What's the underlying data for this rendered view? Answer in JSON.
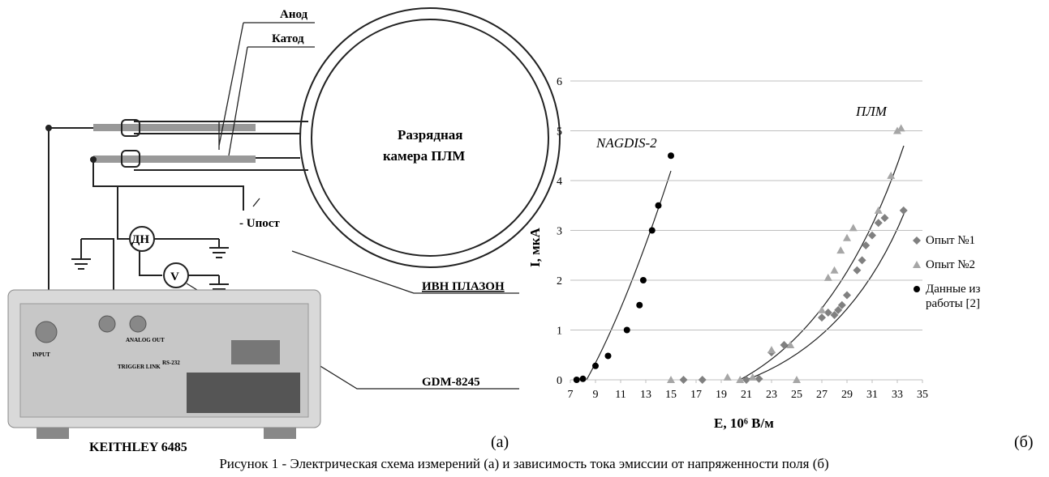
{
  "diagram": {
    "anode": "Анод",
    "cathode": "Катод",
    "chamber": [
      "Разрядная",
      "камера ПЛМ"
    ],
    "divider": "ДН",
    "voltmeter": "V",
    "supply": "- Uпост",
    "source": "ИВН ПЛАЗОН",
    "meter": "GDM-8245",
    "device": "KEITHLEY 6485",
    "panel": [
      "INPUT",
      "ANALOG OUT",
      "TRIGGER LINK",
      "RS-232"
    ],
    "label": "(а)"
  },
  "chart_data": {
    "type": "scatter",
    "label": "(б)",
    "x_label": "E, 10⁶ В/м",
    "y_label": "I, мкА",
    "annotations": [
      "NAGDIS-2",
      "ПЛМ"
    ],
    "xlim": [
      7,
      35
    ],
    "xticks": [
      7,
      9,
      11,
      13,
      15,
      17,
      19,
      21,
      23,
      25,
      27,
      29,
      31,
      33,
      35
    ],
    "ylim": [
      0,
      6
    ],
    "yticks": [
      0,
      1,
      2,
      3,
      4,
      5,
      6
    ],
    "grid": true,
    "series": [
      {
        "name": "Опыт №1",
        "color": "#808080",
        "marker": "diamond",
        "x": [
          16,
          17.5,
          21,
          22,
          23,
          24,
          27,
          27.5,
          28,
          28.3,
          28.6,
          29,
          29.8,
          30.2,
          30.5,
          31,
          31.5,
          32,
          33.5
        ],
        "values": [
          0,
          0,
          0,
          0.02,
          0.55,
          0.7,
          1.25,
          1.35,
          1.3,
          1.4,
          1.5,
          1.7,
          2.2,
          2.4,
          2.7,
          2.9,
          3.15,
          3.25,
          3.4
        ]
      },
      {
        "name": "Опыт №2",
        "color": "#a6a6a6",
        "marker": "triangle",
        "x": [
          15,
          19.5,
          20.5,
          21.5,
          23,
          24.5,
          25,
          27,
          27.5,
          28,
          28.5,
          29,
          29.5,
          31.5,
          32.5,
          33,
          33.3
        ],
        "values": [
          0,
          0.05,
          0,
          0.05,
          0.6,
          0.7,
          0,
          1.4,
          2.05,
          2.2,
          2.6,
          2.85,
          3.05,
          3.4,
          4.1,
          5.0,
          5.05
        ]
      },
      {
        "name": "Данные из работы [2]",
        "color": "#000000",
        "marker": "circle",
        "x": [
          7.5,
          8,
          9,
          10,
          11.5,
          12.5,
          12.8,
          13.5,
          14,
          15
        ],
        "values": [
          0,
          0.02,
          0.28,
          0.48,
          1.0,
          1.5,
          2.0,
          3.0,
          3.5,
          4.5
        ]
      }
    ]
  },
  "caption": "Рисунок 1 -  Электрическая схема измерений (а) и зависимость тока эмиссии от напряженности поля (б)"
}
